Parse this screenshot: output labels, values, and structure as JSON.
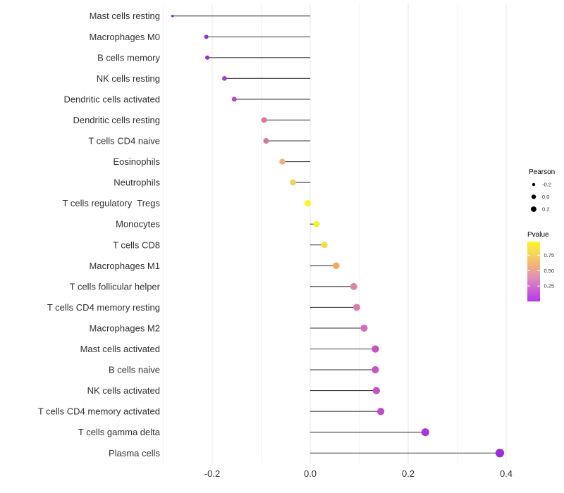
{
  "chart_data": {
    "type": "scatter",
    "variant": "lollipop",
    "title": "",
    "xlabel": "",
    "ylabel": "",
    "grid": true,
    "xlim": [
      -0.31,
      0.42
    ],
    "x_ticks": [
      -0.2,
      0.0,
      0.2,
      0.4
    ],
    "x_tick_labels": [
      "-0.2",
      "0.0",
      "0.2",
      "0.4"
    ],
    "x_minor_grid": [
      -0.3,
      -0.1,
      0.1,
      0.3
    ],
    "stem_baseline": 0.0,
    "points": [
      {
        "label": "Mast cells resting",
        "pearson": -0.281,
        "pvalue": 0.03,
        "color": "#8B2BE0"
      },
      {
        "label": "Macrophages M0",
        "pearson": -0.212,
        "pvalue": 0.09,
        "color": "#9232DB"
      },
      {
        "label": "B cells memory",
        "pearson": -0.21,
        "pvalue": 0.1,
        "color": "#9434D9"
      },
      {
        "label": "NK cells resting",
        "pearson": -0.175,
        "pvalue": 0.16,
        "color": "#A73BCC"
      },
      {
        "label": "Dendritic cells activated",
        "pearson": -0.155,
        "pvalue": 0.22,
        "color": "#B446C4"
      },
      {
        "label": "Dendritic cells resting",
        "pearson": -0.094,
        "pvalue": 0.44,
        "color": "#D9759B"
      },
      {
        "label": "T cells CD4 naive",
        "pearson": -0.09,
        "pvalue": 0.44,
        "color": "#D9759B"
      },
      {
        "label": "Eosinophils",
        "pearson": -0.057,
        "pvalue": 0.64,
        "color": "#EFB277"
      },
      {
        "label": "Neutrophils",
        "pearson": -0.035,
        "pvalue": 0.74,
        "color": "#F2CE5D"
      },
      {
        "label": "T cells regulatory  Tregs",
        "pearson": -0.005,
        "pvalue": 0.9,
        "color": "#F8F521"
      },
      {
        "label": "Monocytes",
        "pearson": 0.013,
        "pvalue": 0.91,
        "color": "#F6F22B"
      },
      {
        "label": "T cells CD8",
        "pearson": 0.029,
        "pvalue": 0.8,
        "color": "#F5DC4B"
      },
      {
        "label": "Macrophages M1",
        "pearson": 0.053,
        "pvalue": 0.66,
        "color": "#EEAC62"
      },
      {
        "label": "T cells follicular helper",
        "pearson": 0.089,
        "pvalue": 0.47,
        "color": "#DB84A8"
      },
      {
        "label": "T cells CD4 memory resting",
        "pearson": 0.095,
        "pvalue": 0.44,
        "color": "#D97BAE"
      },
      {
        "label": "Macrophages M2",
        "pearson": 0.11,
        "pvalue": 0.39,
        "color": "#D26CB8"
      },
      {
        "label": "Mast cells activated",
        "pearson": 0.133,
        "pvalue": 0.31,
        "color": "#C554BE"
      },
      {
        "label": "B cells naive",
        "pearson": 0.133,
        "pvalue": 0.31,
        "color": "#C754BE"
      },
      {
        "label": "NK cells activated",
        "pearson": 0.135,
        "pvalue": 0.29,
        "color": "#C551C3"
      },
      {
        "label": "T cells CD4 memory activated",
        "pearson": 0.144,
        "pvalue": 0.26,
        "color": "#C14CCB"
      },
      {
        "label": "T cells gamma delta",
        "pearson": 0.235,
        "pvalue": 0.07,
        "color": "#AB34DA"
      },
      {
        "label": "Plasma cells",
        "pearson": 0.387,
        "pvalue": 0.02,
        "color": "#9C2BD9"
      }
    ],
    "legend": {
      "position": "right",
      "size": {
        "title": "Pearson",
        "dot_color": "#000000",
        "entries": [
          {
            "label": "-0.2",
            "value": -0.2
          },
          {
            "label": "0.0",
            "value": 0.0
          },
          {
            "label": "0.2",
            "value": 0.2
          }
        ]
      },
      "color": {
        "title": "Pvalue",
        "ticks": [
          "0.75",
          "0.50",
          "0.25"
        ],
        "tick_values": [
          0.75,
          0.5,
          0.25
        ],
        "bar_range": [
          0.97,
          0.0
        ],
        "gradient_top_to_bottom": [
          "#FBF426",
          "#F7D657",
          "#EFAE82",
          "#E393B2",
          "#CF66D0",
          "#B438EC"
        ],
        "gradient_offsets": [
          0,
          0.2,
          0.42,
          0.58,
          0.78,
          1
        ]
      }
    },
    "style": {
      "stem_color": "#3A3A3A",
      "major_grid_color": "#E7E7E7",
      "minor_grid_color": "#F2F2F2",
      "background": "#FFFFFF"
    }
  }
}
